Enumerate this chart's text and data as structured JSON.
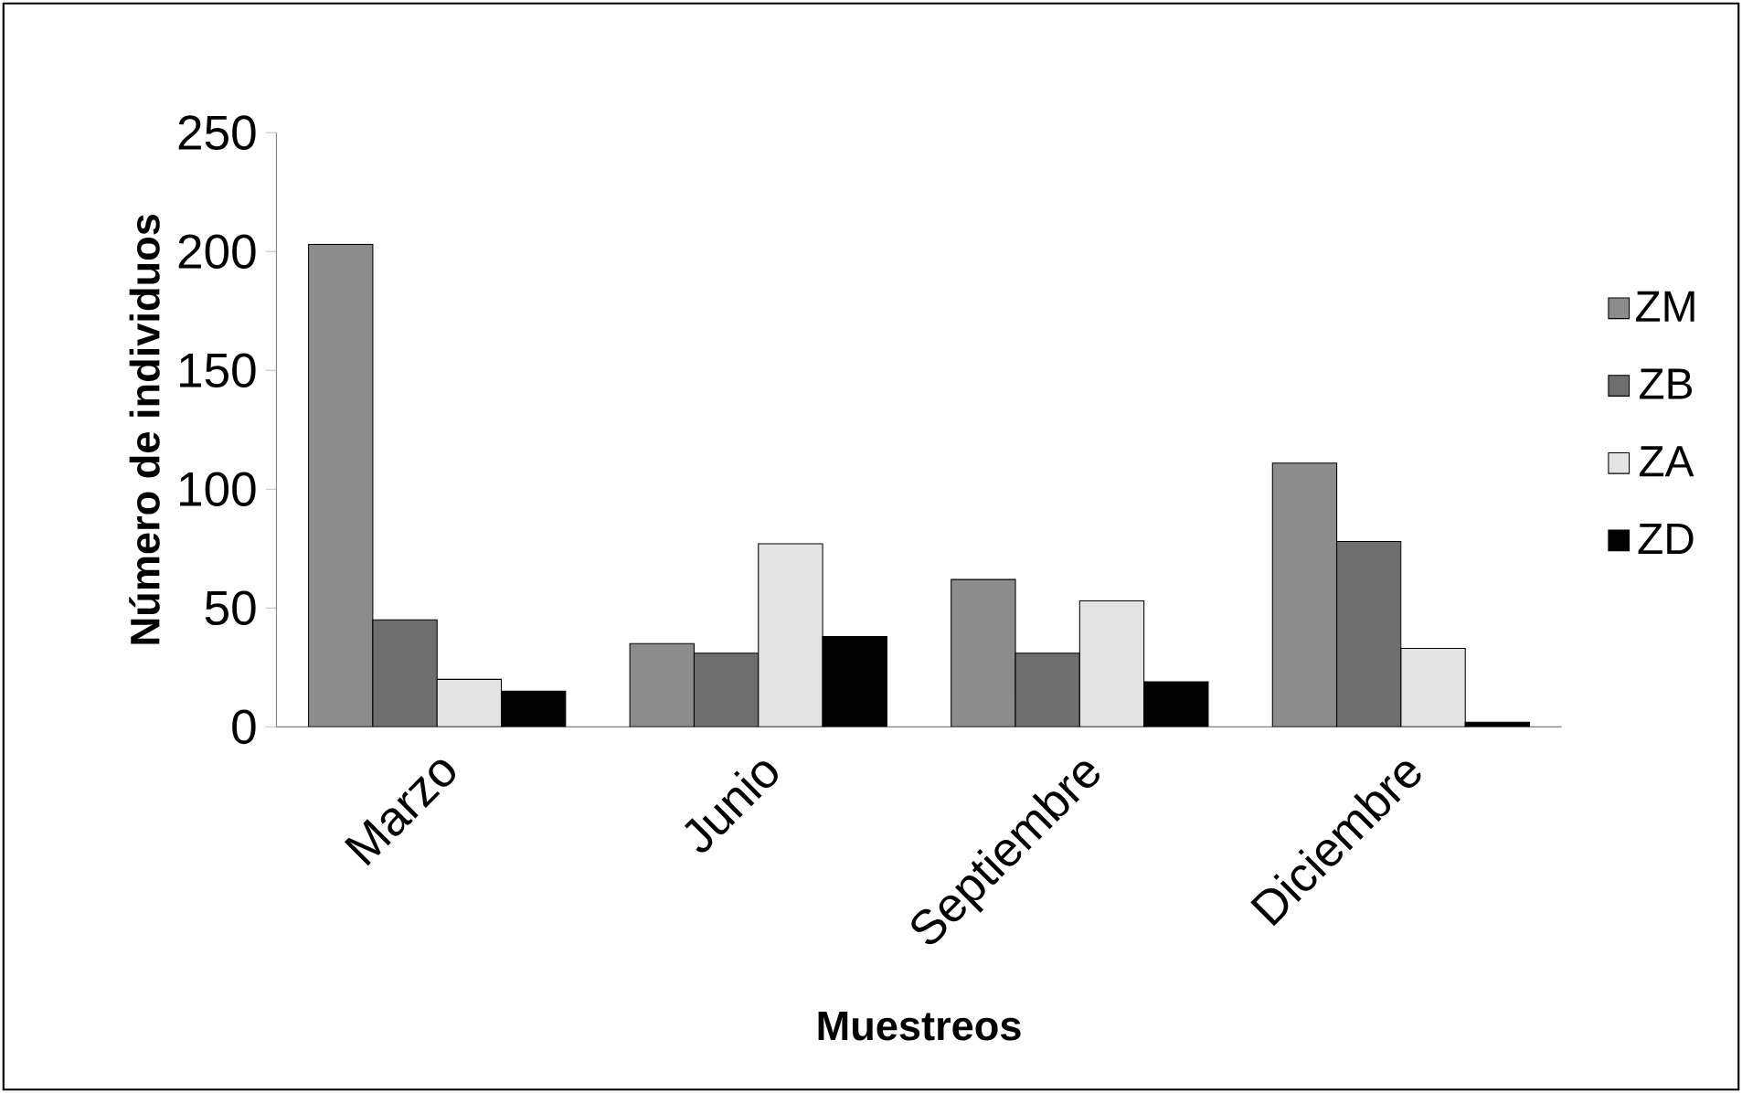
{
  "chart_data": {
    "type": "bar",
    "xlabel": "Muestreos",
    "ylabel": "Número de individuos",
    "categories": [
      "Marzo",
      "Junio",
      "Septiembre",
      "Diciembre"
    ],
    "series": [
      {
        "name": "ZM",
        "color": "#8c8c8c",
        "values": [
          203,
          35,
          62,
          111
        ]
      },
      {
        "name": "ZB",
        "color": "#6e6e6e",
        "values": [
          45,
          31,
          31,
          78
        ]
      },
      {
        "name": "ZA",
        "color": "#e3e3e3",
        "values": [
          20,
          77,
          53,
          33
        ]
      },
      {
        "name": "ZD",
        "color": "#000000",
        "values": [
          15,
          38,
          19,
          2
        ]
      }
    ],
    "ylim": [
      0,
      250
    ],
    "yticks": [
      0,
      50,
      100,
      150,
      200,
      250
    ],
    "grid": false,
    "legend": "right"
  }
}
